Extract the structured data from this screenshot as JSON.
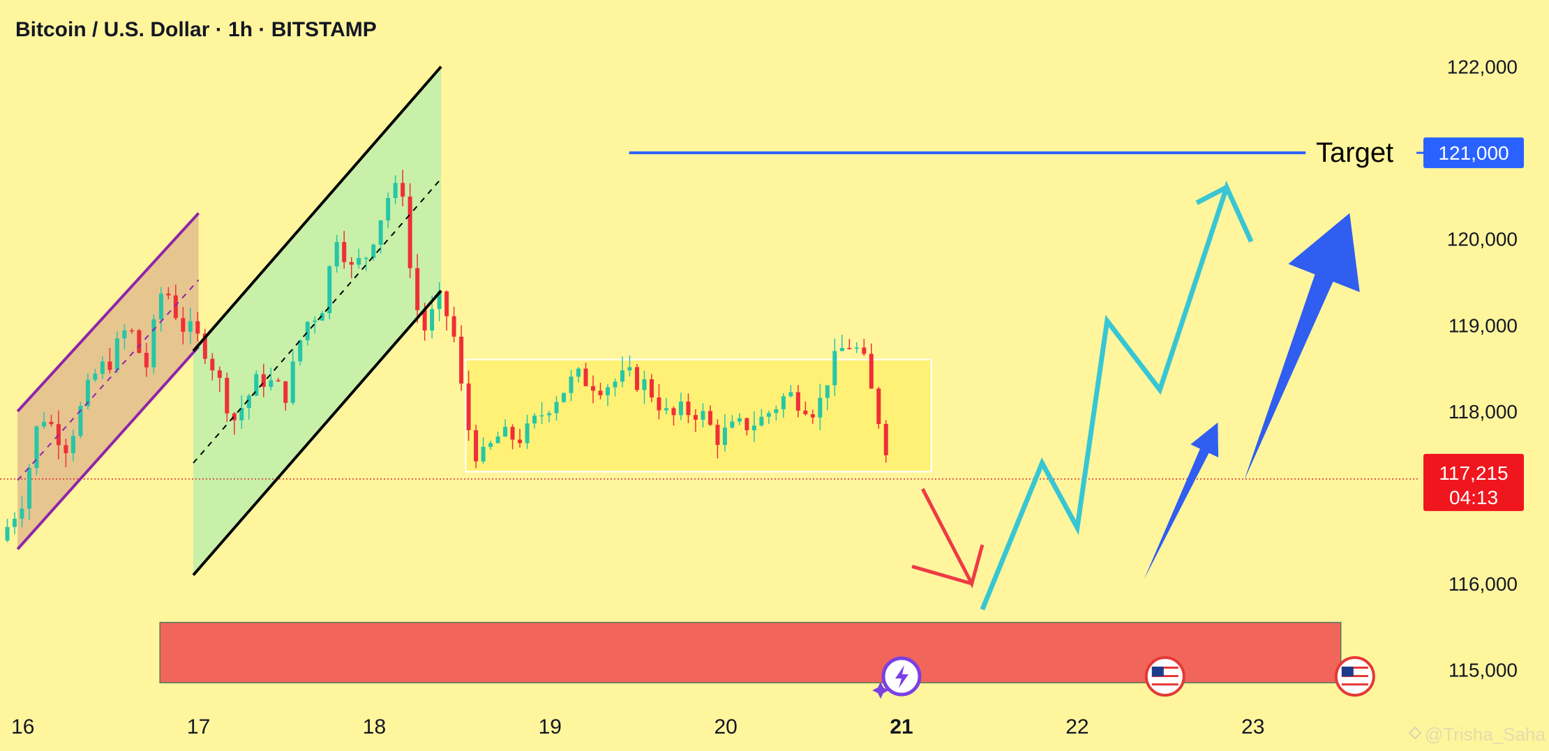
{
  "header": {
    "title": "Bitcoin / U.S. Dollar · 1h · BITSTAMP"
  },
  "watermark": "@Trisha_Saha",
  "colors": {
    "background": "#fff59d",
    "up": "#26c6a6",
    "down": "#ef2f37",
    "target_line": "#2962ff",
    "price_badge": "#f0161e",
    "target_badge": "#2962ff",
    "channel_fill_1": "#e7c58f",
    "channel_border_1": "#8e24aa",
    "channel_fill_2": "#c8f0a8",
    "range_box": "#fff176",
    "demand_zone": "#f2655b",
    "projection_cyan": "#38c6d4",
    "projection_blue": "#2f5ef0",
    "projection_red": "#ef3a44"
  },
  "chart_data": {
    "type": "candlestick",
    "title": "Bitcoin / U.S. Dollar · 1h · BITSTAMP",
    "xlabel": "",
    "ylabel": "",
    "x_range": [
      15.87,
      23.95
    ],
    "ylim": [
      114600,
      122450
    ],
    "x_ticks": [
      {
        "x": 16,
        "label": "16",
        "bold": false
      },
      {
        "x": 17,
        "label": "17",
        "bold": false
      },
      {
        "x": 18,
        "label": "18",
        "bold": false
      },
      {
        "x": 19,
        "label": "19",
        "bold": false
      },
      {
        "x": 20,
        "label": "20",
        "bold": false
      },
      {
        "x": 21,
        "label": "21",
        "bold": true
      },
      {
        "x": 22,
        "label": "22",
        "bold": false
      },
      {
        "x": 23,
        "label": "23",
        "bold": false
      }
    ],
    "y_ticks": [
      {
        "value": 122000,
        "label": "122,000"
      },
      {
        "value": 120000,
        "label": "120,000"
      },
      {
        "value": 119000,
        "label": "119,000"
      },
      {
        "value": 118000,
        "label": "118,000"
      },
      {
        "value": 116000,
        "label": "116,000"
      },
      {
        "value": 115000,
        "label": "115,000"
      }
    ],
    "current_price": {
      "value": 117215,
      "label": "117,215",
      "countdown": "04:13"
    },
    "target": {
      "value": 121000,
      "label": "121,000",
      "text": "Target",
      "x_start": 19.45,
      "x_end": 23.3
    },
    "ohlc_anchors": [
      [
        15.87,
        116500
      ],
      [
        16.0,
        117000
      ],
      [
        16.1,
        118000
      ],
      [
        16.25,
        117600
      ],
      [
        16.4,
        118400
      ],
      [
        16.5,
        118600
      ],
      [
        16.6,
        119000
      ],
      [
        16.7,
        118500
      ],
      [
        16.8,
        119500
      ],
      [
        16.9,
        119000
      ],
      [
        16.97,
        118900
      ],
      [
        17.05,
        118700
      ],
      [
        17.2,
        117900
      ],
      [
        17.35,
        118400
      ],
      [
        17.5,
        118200
      ],
      [
        17.6,
        119000
      ],
      [
        17.7,
        119200
      ],
      [
        17.8,
        120200
      ],
      [
        17.85,
        119600
      ],
      [
        17.95,
        119800
      ],
      [
        18.08,
        120500
      ],
      [
        18.17,
        120600
      ],
      [
        18.2,
        119700
      ],
      [
        18.27,
        118900
      ],
      [
        18.38,
        119300
      ],
      [
        18.45,
        118900
      ],
      [
        18.52,
        117900
      ],
      [
        18.6,
        117400
      ],
      [
        18.7,
        117700
      ],
      [
        18.85,
        117700
      ],
      [
        19.0,
        118100
      ],
      [
        19.15,
        118400
      ],
      [
        19.3,
        118300
      ],
      [
        19.45,
        118400
      ],
      [
        19.55,
        118300
      ],
      [
        19.62,
        118100
      ],
      [
        19.68,
        117900
      ],
      [
        19.75,
        118000
      ],
      [
        19.85,
        118000
      ],
      [
        19.95,
        117700
      ],
      [
        20.05,
        117800
      ],
      [
        20.2,
        117900
      ],
      [
        20.35,
        118200
      ],
      [
        20.45,
        118100
      ],
      [
        20.52,
        118000
      ],
      [
        20.58,
        118400
      ],
      [
        20.65,
        118700
      ],
      [
        20.72,
        118800
      ],
      [
        20.8,
        118500
      ],
      [
        20.85,
        118000
      ],
      [
        20.9,
        117800
      ],
      [
        20.93,
        117300
      ],
      [
        20.95,
        117215
      ]
    ],
    "annotations": {
      "channel_1": {
        "x_start": 15.97,
        "x_end": 17.0,
        "lower_start": 116400,
        "lower_end": 118750,
        "upper_start": 118000,
        "upper_end": 120300
      },
      "channel_2": {
        "x_start": 16.97,
        "x_end": 18.38,
        "lower_start": 116100,
        "lower_end": 119400,
        "upper_start": 118700,
        "upper_end": 122000
      },
      "range_box": {
        "x_start": 18.52,
        "x_end": 21.17,
        "top": 118600,
        "bottom": 117300
      },
      "demand_zone": {
        "x_start": 16.78,
        "x_end": 23.5,
        "top": 115550,
        "bottom": 114850
      }
    },
    "projections": {
      "red_path": [
        [
          21.12,
          117100
        ],
        [
          21.4,
          116000
        ],
        [
          21.46,
          116450
        ]
      ],
      "cyan_path": [
        [
          21.46,
          115700
        ],
        [
          21.8,
          117400
        ],
        [
          22.0,
          116650
        ],
        [
          22.17,
          119050
        ],
        [
          22.47,
          118250
        ],
        [
          22.85,
          120600
        ],
        [
          22.99,
          119970
        ]
      ],
      "blue_small_start": [
        22.38,
        116050
      ],
      "blue_small_tip": [
        22.8,
        117870
      ],
      "blue_big_start": [
        22.95,
        117200
      ],
      "blue_big_tip": [
        23.55,
        120300
      ]
    },
    "events": [
      {
        "x": 21.0,
        "icon": "lightning-icon"
      },
      {
        "x": 22.5,
        "icon": "us-flag-icon"
      },
      {
        "x": 23.58,
        "icon": "us-flag-icon"
      }
    ]
  }
}
